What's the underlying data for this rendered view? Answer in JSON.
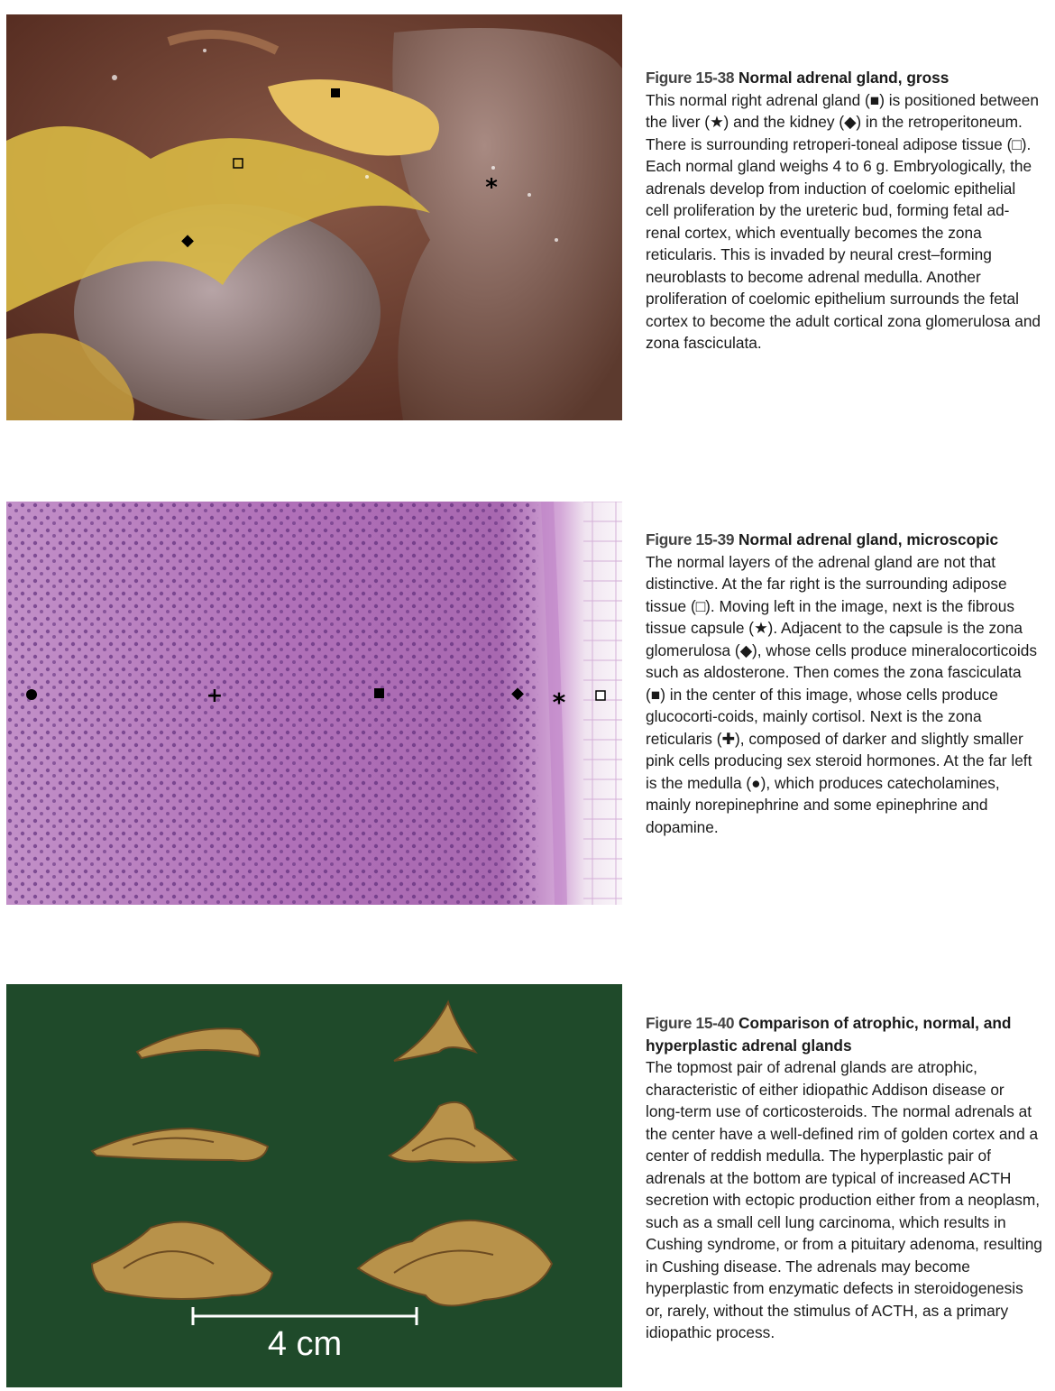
{
  "figures": [
    {
      "number": "Figure 15-38",
      "title": "Normal adrenal gland, gross",
      "body": "This normal right adrenal gland (■) is positioned between the liver (★) and the kidney (◆) in the retroperitoneum. There is surrounding retroperi-toneal adipose tissue (□). Each normal gland weighs 4 to 6 g. Embryologically, the adrenals develop from induction of coelomic epithelial cell proliferation by the ureteric bud, forming fetal ad-renal cortex, which eventually becomes the zona reticularis. This is invaded by neural crest–forming neuroblasts to become adrenal medulla. Another proliferation of coelomic epithelium surrounds the fetal cortex to become the adult cortical zona glomerulosa and zona fasciculata.",
      "markers": {
        "square_filled": "■",
        "square_open": "□",
        "star": "*",
        "diamond": "◆"
      }
    },
    {
      "number": "Figure 15-39",
      "title": "Normal adrenal gland, microscopic",
      "body": "The normal layers of the adrenal gland are not that distinctive. At the far right is the surrounding adipose tissue (□). Moving left in the image, next is the fibrous tissue capsule (★). Adjacent to the capsule is the zona glomerulosa (◆), whose cells produce mineralocorticoids such as aldosterone. Then comes the zona fasciculata (■) in the center of this image, whose cells produce glucocorti-coids, mainly cortisol. Next is the zona reticularis (✚), composed of darker and slightly smaller pink cells producing sex steroid hormones. At the far left is the medulla (●), which produces catecholamines, mainly norepinephrine and some epinephrine and dopamine.",
      "markers": {
        "circle": "●",
        "plus": "+",
        "square_filled": "■",
        "diamond": "◆",
        "star": "*",
        "square_open": "□"
      }
    },
    {
      "number": "Figure 15-40",
      "title": "Comparison of atrophic, normal, and hyperplastic adrenal glands",
      "body": "The topmost pair of adrenal glands are atrophic, characteristic of either idiopathic Addison disease or long-term use of corticosteroids. The normal adrenals at the center have a well-defined rim of golden cortex and a center of reddish medulla. The hyperplastic pair of adrenals at the bottom are typical of increased ACTH secretion with ectopic production either from a neoplasm, such as a small cell lung carcinoma, which results in Cushing syndrome, or from a pituitary adenoma, resulting in Cushing disease. The adrenals may become hyperplastic from enzymatic defects in steroidogenesis or, rarely, without the stimulus of ACTH, as a primary idiopathic process.",
      "scale_label": "4 cm"
    }
  ],
  "colors": {
    "gross_background": "#6b3a2a",
    "histology_background": "#b070b8",
    "specimen_background": "#1f4a2a",
    "specimen_tissue": "#b8924a"
  }
}
